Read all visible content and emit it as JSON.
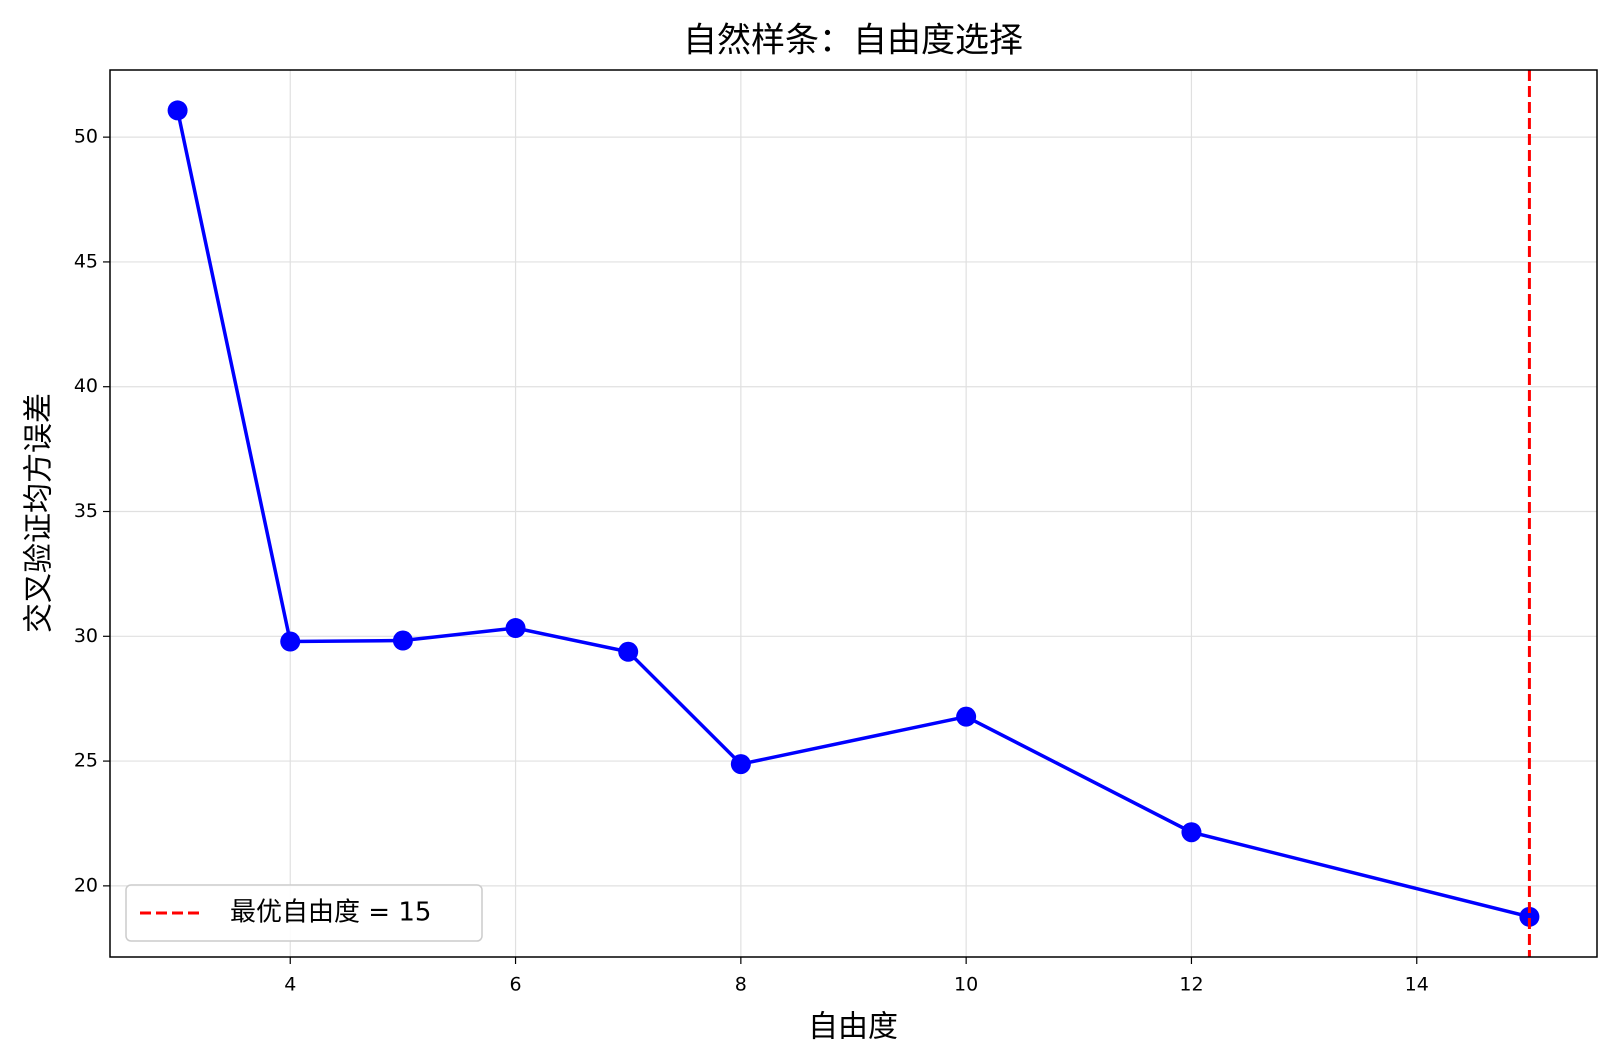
{
  "chart_data": {
    "type": "line",
    "title": "自然样条：自由度选择",
    "x_label": "自由度",
    "y_label": "交叉验证均方误差",
    "x": [
      3,
      4,
      5,
      6,
      7,
      8,
      10,
      12,
      15
    ],
    "values": [
      51.07,
      29.79,
      29.83,
      30.33,
      29.38,
      24.88,
      26.78,
      22.15,
      18.76
    ],
    "color": "#0000ff",
    "xlim": [
      2.4,
      15.6
    ],
    "xticks": [
      4,
      6,
      8,
      10,
      12,
      14
    ],
    "ylim": [
      17.15,
      52.69
    ],
    "yticks": [
      20,
      25,
      30,
      35,
      40,
      45,
      50
    ],
    "grid": true,
    "vline": {
      "x": 15,
      "label": "最优自由度 = 15",
      "color": "#ff0000"
    },
    "legend": "lower left"
  }
}
